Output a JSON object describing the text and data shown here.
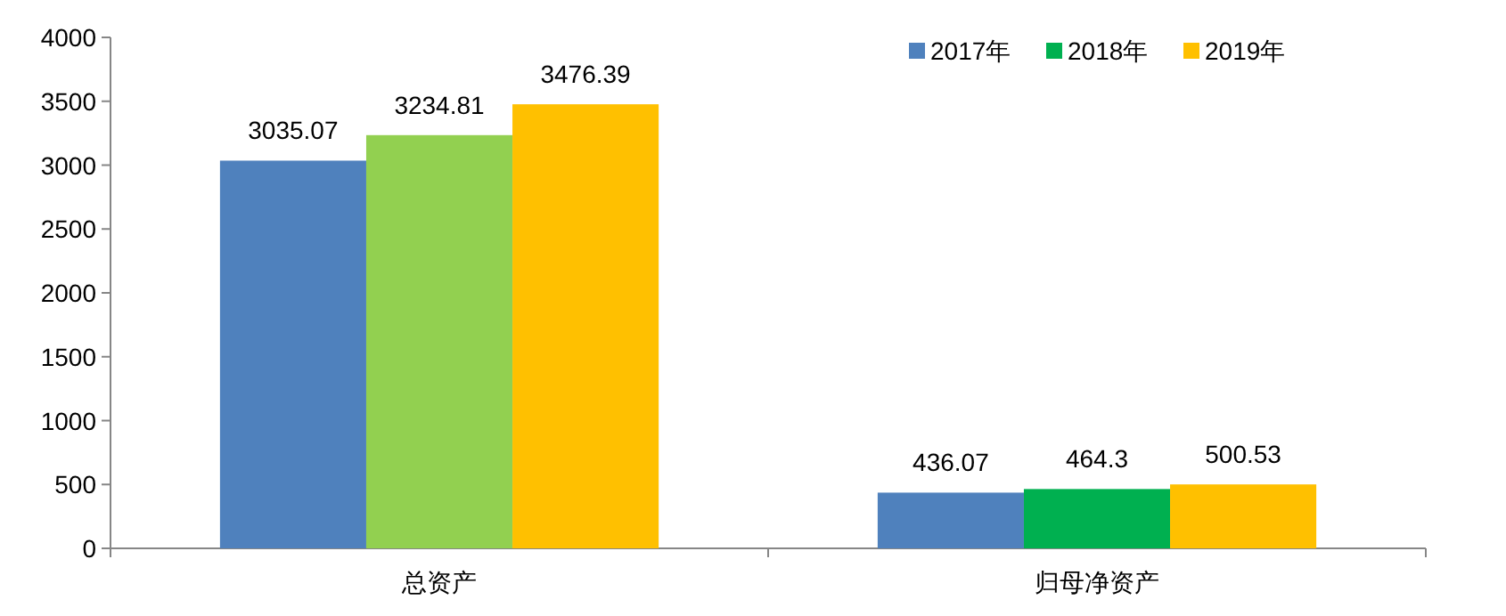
{
  "chart_data": {
    "type": "bar",
    "categories": [
      "总资产",
      "归母净资产"
    ],
    "series": [
      {
        "name": "2017年",
        "color": "#4f81bd",
        "values": [
          3035.07,
          436.07
        ]
      },
      {
        "name": "2018年",
        "color": "#00b050",
        "colors": [
          "#92d050",
          "#00b050"
        ],
        "values": [
          3234.81,
          464.3
        ]
      },
      {
        "name": "2019年",
        "color": "#ffc000",
        "values": [
          3476.39,
          500.53
        ]
      }
    ],
    "ylim": [
      0,
      4000
    ],
    "yticks": [
      0,
      500,
      1000,
      1500,
      2000,
      2500,
      3000,
      3500,
      4000
    ],
    "data_labels": true,
    "legend": "top right",
    "grid": false
  }
}
